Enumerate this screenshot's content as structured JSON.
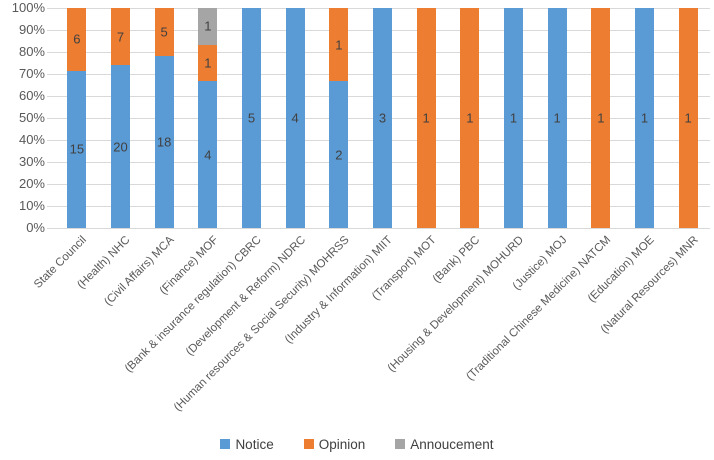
{
  "chart_data": {
    "type": "bar",
    "subtype": "stacked-100-percent",
    "title": "",
    "xlabel": "",
    "ylabel": "",
    "categories": [
      "State Council",
      "(Health) NHC",
      "(Civil Affairs) MCA",
      "(Finance) MOF",
      "(Bank & insurance regulation) CBRC",
      "(Development & Reform) NDRC",
      "(Human resources & Social Security) MOHRSS",
      "(Industry & Information) MIIT",
      "(Transport) MOT",
      "(Bank) PBC",
      "(Housing & Development) MOHURD",
      "(Justice) MOJ",
      "(Traditional Chinese Medicine) NATCM",
      "(Education) MOE",
      "(Natural Resources) MNR"
    ],
    "series": [
      {
        "name": "Notice",
        "color": "#5B9BD5",
        "values": [
          15,
          20,
          18,
          4,
          5,
          4,
          2,
          3,
          0,
          0,
          1,
          1,
          0,
          1,
          0
        ]
      },
      {
        "name": "Opinion",
        "color": "#ED7D31",
        "values": [
          6,
          7,
          5,
          1,
          0,
          0,
          1,
          0,
          1,
          1,
          0,
          0,
          1,
          0,
          1
        ]
      },
      {
        "name": "Annoucement",
        "color": "#A5A5A5",
        "values": [
          0,
          0,
          0,
          1,
          0,
          0,
          0,
          0,
          0,
          0,
          0,
          0,
          0,
          0,
          0
        ]
      }
    ],
    "y_ticks": [
      "0%",
      "10%",
      "20%",
      "30%",
      "40%",
      "50%",
      "60%",
      "70%",
      "80%",
      "90%",
      "100%"
    ],
    "ylim": [
      0,
      100
    ],
    "grid": true,
    "legend_position": "bottom",
    "data_labels": "raw counts centered inside each segment",
    "colors": {
      "background": "#FFFFFF",
      "grid": "#D9D9D9",
      "axis_text": "#595959",
      "data_label": "#404040"
    }
  }
}
